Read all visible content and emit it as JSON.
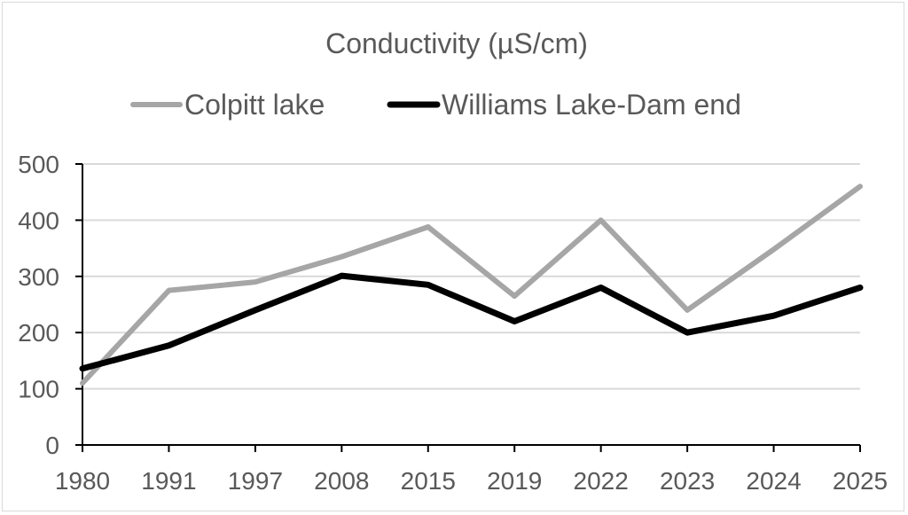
{
  "chart_data": {
    "type": "line",
    "title": "Conductivity (µS/cm)",
    "categories": [
      "1980",
      "1991",
      "1997",
      "2008",
      "2015",
      "2019",
      "2022",
      "2023",
      "2024",
      "2025"
    ],
    "series": [
      {
        "name": "Colpitt lake",
        "color": "#a6a6a6",
        "values": [
          110,
          275,
          290,
          335,
          388,
          265,
          400,
          240,
          348,
          460
        ]
      },
      {
        "name": "Williams Lake-Dam end",
        "color": "#000000",
        "values": [
          136,
          177,
          240,
          301,
          285,
          220,
          280,
          200,
          230,
          280
        ]
      }
    ],
    "xlabel": "",
    "ylabel": "",
    "ylim": [
      0,
      500
    ],
    "yticks": [
      "0",
      "100",
      "200",
      "300",
      "400",
      "500"
    ],
    "grid": true,
    "legend": "top"
  }
}
